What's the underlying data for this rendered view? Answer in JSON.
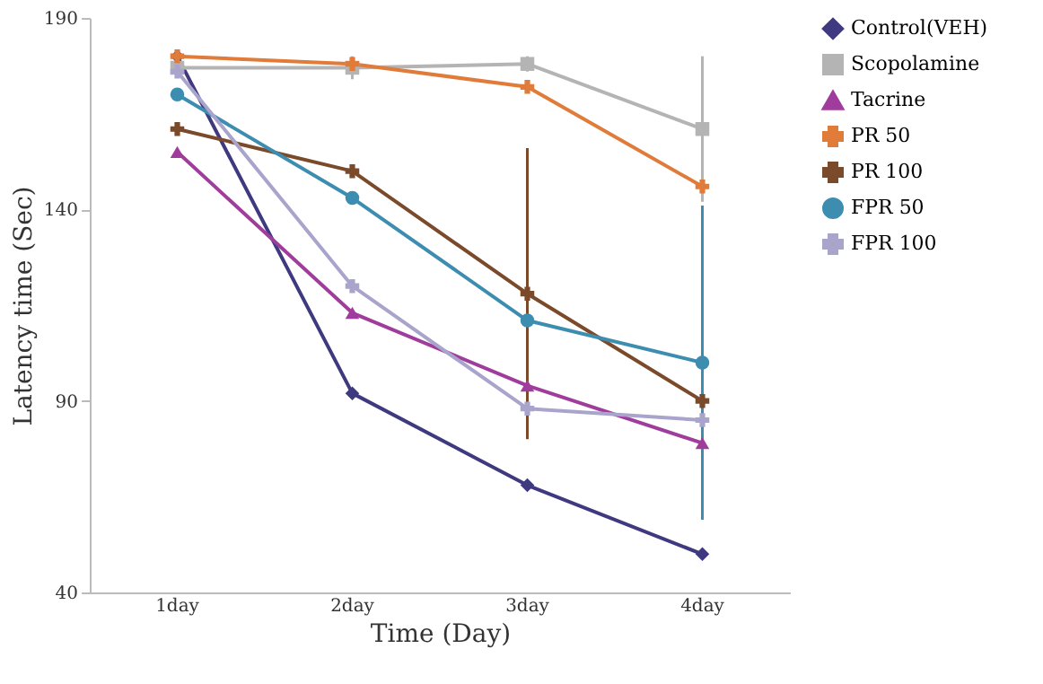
{
  "chart_data": {
    "type": "line",
    "xlabel": "Time (Day)",
    "ylabel": "Latency time (Sec)",
    "categories": [
      "1day",
      "2day",
      "3day",
      "4day"
    ],
    "ylim": [
      40,
      190
    ],
    "yticks": [
      40,
      90,
      140,
      190
    ],
    "grid": false,
    "legend": "right",
    "series": [
      {
        "name": "Control(VEH)",
        "color": "#3f3a80",
        "marker": "diamond",
        "values": [
          180,
          92,
          68,
          50
        ]
      },
      {
        "name": "Scopolamine",
        "color": "#b4b4b4",
        "marker": "square",
        "values": [
          177,
          177,
          178,
          161
        ],
        "errors": [
          null,
          3,
          2,
          19
        ]
      },
      {
        "name": "Tacrine",
        "color": "#a03c9c",
        "marker": "triangle",
        "values": [
          155,
          113,
          94,
          79
        ]
      },
      {
        "name": "PR 50",
        "color": "#e07b39",
        "marker": "cross",
        "values": [
          180,
          178,
          172,
          146
        ]
      },
      {
        "name": "PR 100",
        "color": "#7a4a2a",
        "marker": "cross",
        "values": [
          161,
          150,
          118,
          90
        ],
        "errors": [
          null,
          null,
          38,
          null
        ]
      },
      {
        "name": "FPR 50",
        "color": "#3d8db0",
        "marker": "circle",
        "values": [
          170,
          143,
          111,
          100
        ],
        "errors": [
          null,
          null,
          null,
          41
        ]
      },
      {
        "name": "FPR 100",
        "color": "#a9a4cc",
        "marker": "cross",
        "values": [
          176,
          120,
          88,
          85
        ]
      }
    ]
  }
}
